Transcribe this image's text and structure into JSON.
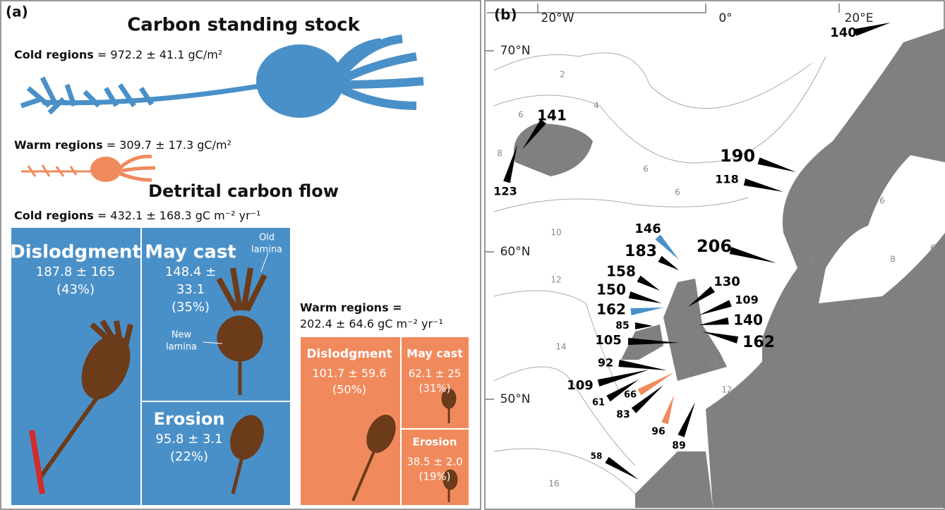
{
  "panel_a": {
    "label": "(a)",
    "stock_title": "Carbon standing stock",
    "stock_cold": {
      "name": "Cold regions",
      "value": "= 972.2  ± 41.1 gC/m²"
    },
    "stock_warm": {
      "name": "Warm regions",
      "value": "= 309.7 ± 17.3 gC/m²"
    },
    "flow_title": "Detrital carbon flow",
    "flow_cold": {
      "name": "Cold regions",
      "value": "= 432.1 ± 168.3 gC m⁻² yr⁻¹",
      "dislodgment": {
        "name": "Dislodgment",
        "lines": [
          "187.8 ± 165",
          "(43%)"
        ]
      },
      "may_cast": {
        "name": "May cast",
        "lines": [
          "148.4 ±",
          "33.1",
          "(35%)"
        ]
      },
      "erosion": {
        "name": "Erosion",
        "lines": [
          "95.8 ± 3.1",
          "(22%)"
        ]
      },
      "old_lamina": [
        "Old",
        "lamina"
      ],
      "new_lamina": [
        "New",
        "lamina"
      ]
    },
    "flow_warm": {
      "name": "Warm regions =",
      "value": "202.4 ± 64.6 gC m⁻² yr⁻¹",
      "dislodgment": {
        "name": "Dislodgment",
        "lines": [
          "101.7 ± 59.6",
          "(50%)"
        ]
      },
      "may_cast": {
        "name": "May cast",
        "lines": [
          "62.1 ± 25",
          "(31%)"
        ]
      },
      "erosion": {
        "name": "Erosion",
        "lines": [
          "38.5 ± 2.0",
          "(19%)"
        ]
      }
    }
  },
  "panel_b": {
    "label": "(b)",
    "longitudes": [
      "20°W",
      "0°",
      "20°E"
    ],
    "latitudes": [
      "70°N",
      "60°N",
      "50°N"
    ],
    "contours": [
      "2",
      "4",
      "6",
      "6",
      "8",
      "6",
      "8",
      "10",
      "12",
      "14",
      "10",
      "12",
      "16",
      "6",
      "8",
      "6",
      "6"
    ],
    "sites": [
      {
        "label": "140",
        "color": "#000"
      },
      {
        "label": "141",
        "color": "#000"
      },
      {
        "label": "123",
        "color": "#000"
      },
      {
        "label": "190",
        "color": "#000"
      },
      {
        "label": "118",
        "color": "#000"
      },
      {
        "label": "146",
        "color": "#4a90c8"
      },
      {
        "label": "206",
        "color": "#000"
      },
      {
        "label": "183",
        "color": "#000"
      },
      {
        "label": "158",
        "color": "#000"
      },
      {
        "label": "130",
        "color": "#000"
      },
      {
        "label": "150",
        "color": "#000"
      },
      {
        "label": "109",
        "color": "#000"
      },
      {
        "label": "162",
        "color": "#4a90c8"
      },
      {
        "label": "140",
        "color": "#000"
      },
      {
        "label": "85",
        "color": "#000"
      },
      {
        "label": "162",
        "color": "#000"
      },
      {
        "label": "105",
        "color": "#000"
      },
      {
        "label": "92",
        "color": "#000"
      },
      {
        "label": "109",
        "color": "#000"
      },
      {
        "label": "66",
        "color": "#f08a5d"
      },
      {
        "label": "61",
        "color": "#000"
      },
      {
        "label": "83",
        "color": "#000"
      },
      {
        "label": "96",
        "color": "#f08a5d"
      },
      {
        "label": "89",
        "color": "#000"
      },
      {
        "label": "58",
        "color": "#000"
      }
    ]
  }
}
